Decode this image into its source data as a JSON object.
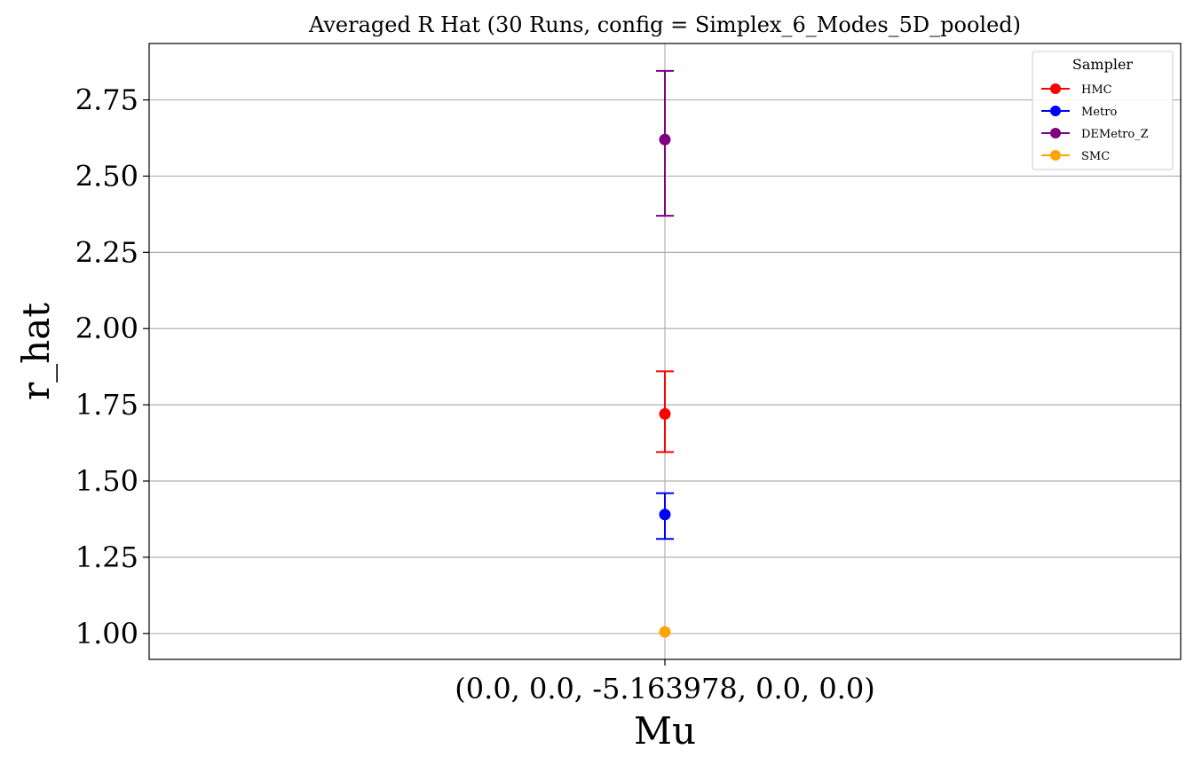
{
  "chart_data": {
    "type": "scatter",
    "title": "Averaged R Hat (30 Runs, config = Simplex_6_Modes_5D_pooled)",
    "xlabel": "Mu",
    "ylabel": "r_hat",
    "categories": [
      "(0.0, 0.0, -5.163978, 0.0, 0.0)"
    ],
    "ylim": [
      0.915,
      2.935
    ],
    "yticks": [
      1.0,
      1.25,
      1.5,
      1.75,
      2.0,
      2.25,
      2.5,
      2.75
    ],
    "ytick_labels": [
      "1.00",
      "1.25",
      "1.50",
      "1.75",
      "2.00",
      "2.25",
      "2.50",
      "2.75"
    ],
    "grid": true,
    "legend": {
      "title": "Sampler",
      "placement": "top-right"
    },
    "series": [
      {
        "name": "HMC",
        "color": "#ff0000",
        "values": [
          1.72
        ],
        "err_low": [
          1.595
        ],
        "err_high": [
          1.86
        ]
      },
      {
        "name": "Metro",
        "color": "#0000ff",
        "values": [
          1.39
        ],
        "err_low": [
          1.31
        ],
        "err_high": [
          1.46
        ]
      },
      {
        "name": "DEMetro_Z",
        "color": "#800080",
        "values": [
          2.62
        ],
        "err_low": [
          2.37
        ],
        "err_high": [
          2.845
        ]
      },
      {
        "name": "SMC",
        "color": "#ffa500",
        "values": [
          1.005
        ],
        "err_low": [
          1.005
        ],
        "err_high": [
          1.005
        ]
      }
    ]
  }
}
